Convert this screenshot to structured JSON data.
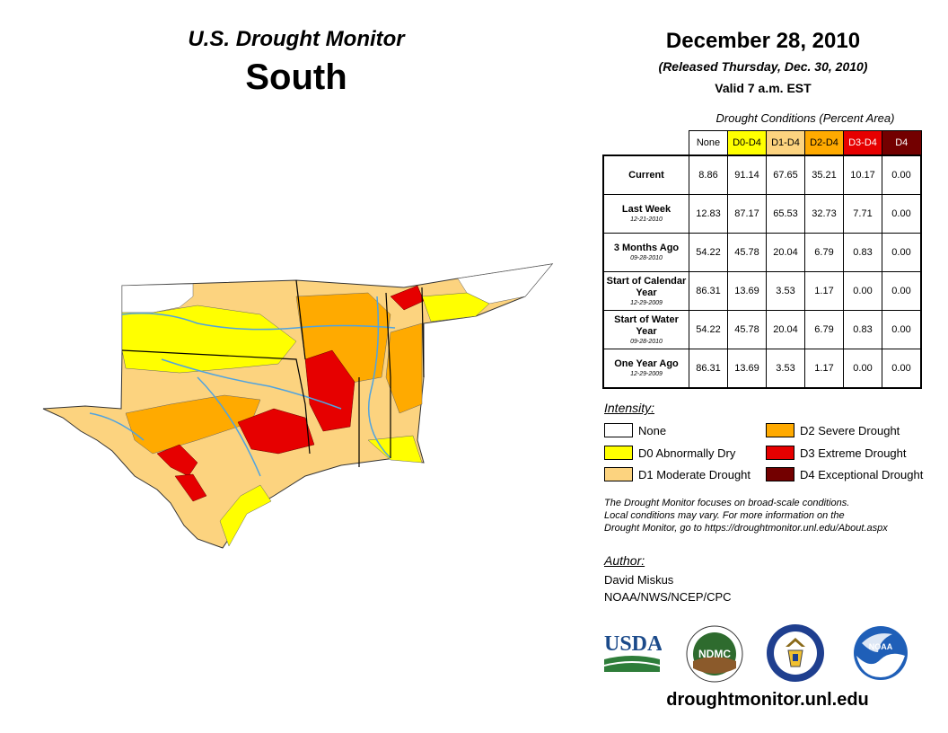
{
  "header": {
    "series_title": "U.S. Drought Monitor",
    "region": "South",
    "date": "December 28, 2010",
    "released": "(Released Thursday, Dec. 30, 2010)",
    "valid": "Valid 7 a.m. EST"
  },
  "conditions": {
    "caption": "Drought Conditions (Percent Area)",
    "columns": [
      {
        "label": "None",
        "color": "#ffffff"
      },
      {
        "label": "D0-D4",
        "color": "#ffff00"
      },
      {
        "label": "D1-D4",
        "color": "#fcd37f"
      },
      {
        "label": "D2-D4",
        "color": "#ffaa00"
      },
      {
        "label": "D3-D4",
        "color": "#e60000"
      },
      {
        "label": "D4",
        "color": "#730000"
      }
    ],
    "rows": [
      {
        "label": "Current",
        "date": "",
        "values": [
          "8.86",
          "91.14",
          "67.65",
          "35.21",
          "10.17",
          "0.00"
        ]
      },
      {
        "label": "Last Week",
        "date": "12-21-2010",
        "values": [
          "12.83",
          "87.17",
          "65.53",
          "32.73",
          "7.71",
          "0.00"
        ]
      },
      {
        "label": "3 Months Ago",
        "date": "09-28-2010",
        "values": [
          "54.22",
          "45.78",
          "20.04",
          "6.79",
          "0.83",
          "0.00"
        ]
      },
      {
        "label": "Start of Calendar Year",
        "date": "12-29-2009",
        "values": [
          "86.31",
          "13.69",
          "3.53",
          "1.17",
          "0.00",
          "0.00"
        ]
      },
      {
        "label": "Start of Water Year",
        "date": "09-28-2010",
        "values": [
          "54.22",
          "45.78",
          "20.04",
          "6.79",
          "0.83",
          "0.00"
        ]
      },
      {
        "label": "One Year Ago",
        "date": "12-29-2009",
        "values": [
          "86.31",
          "13.69",
          "3.53",
          "1.17",
          "0.00",
          "0.00"
        ]
      }
    ]
  },
  "legend": {
    "title": "Intensity:",
    "items": [
      {
        "label": "None",
        "color": "#ffffff"
      },
      {
        "label": "D0 Abnormally Dry",
        "color": "#ffff00"
      },
      {
        "label": "D1 Moderate Drought",
        "color": "#fcd37f"
      },
      {
        "label": "D2 Severe Drought",
        "color": "#ffaa00"
      },
      {
        "label": "D3 Extreme Drought",
        "color": "#e60000"
      },
      {
        "label": "D4 Exceptional Drought",
        "color": "#730000"
      }
    ]
  },
  "note": {
    "line1": "The Drought Monitor focuses on broad-scale conditions.",
    "line2": "Local conditions may vary. For more information on the",
    "line3": "Drought Monitor, go to https://droughtmonitor.unl.edu/About.aspx"
  },
  "author": {
    "label": "Author:",
    "name": "David Miskus",
    "org": "NOAA/NWS/NCEP/CPC"
  },
  "logos": {
    "usda": "USDA",
    "ndmc": "NDMC",
    "noaa": "NOAA"
  },
  "website": "droughtmonitor.unl.edu",
  "map": {
    "states": [
      "Oklahoma",
      "Texas",
      "Arkansas",
      "Louisiana",
      "Mississippi",
      "Tennessee"
    ],
    "colors": {
      "none": "#ffffff",
      "d0": "#ffff00",
      "d1": "#fcd37f",
      "d2": "#ffaa00",
      "d3": "#e60000",
      "water": "#4fa3e0"
    }
  }
}
